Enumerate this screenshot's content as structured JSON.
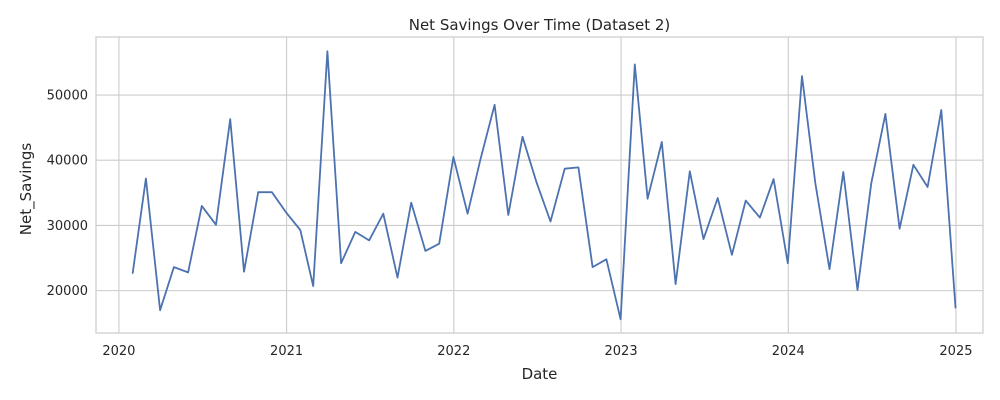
{
  "chart_data": {
    "type": "line",
    "title": "Net Savings Over Time (Dataset 2)",
    "xlabel": "Date",
    "ylabel": "Net_Savings",
    "x_ticks": [
      "2020",
      "2021",
      "2022",
      "2023",
      "2024",
      "2025"
    ],
    "y_ticks": [
      20000,
      30000,
      40000,
      50000
    ],
    "x_range": [
      "2019-11-12",
      "2025-03-01"
    ],
    "y_range": [
      13500,
      58900
    ],
    "grid": true,
    "line_color": "#4c72b0",
    "series": [
      {
        "x": [
          "2020-01-31",
          "2020-02-29",
          "2020-03-31",
          "2020-04-30",
          "2020-05-31",
          "2020-06-30",
          "2020-07-31",
          "2020-08-31",
          "2020-09-30",
          "2020-10-31",
          "2020-11-30",
          "2020-12-31",
          "2021-01-31",
          "2021-02-28",
          "2021-03-31",
          "2021-04-30",
          "2021-05-31",
          "2021-06-30",
          "2021-07-31",
          "2021-08-31",
          "2021-09-30",
          "2021-10-31",
          "2021-11-30",
          "2021-12-31",
          "2022-01-31",
          "2022-02-28",
          "2022-03-31",
          "2022-04-30",
          "2022-05-31",
          "2022-06-30",
          "2022-07-31",
          "2022-08-31",
          "2022-09-30",
          "2022-10-31",
          "2022-11-30",
          "2022-12-31",
          "2023-01-31",
          "2023-02-28",
          "2023-03-31",
          "2023-04-30",
          "2023-05-31",
          "2023-06-30",
          "2023-07-31",
          "2023-08-31",
          "2023-09-30",
          "2023-10-31",
          "2023-11-30",
          "2023-12-31",
          "2024-01-31",
          "2024-02-29",
          "2024-03-31",
          "2024-04-30",
          "2024-05-31",
          "2024-06-30",
          "2024-07-31",
          "2024-08-31",
          "2024-09-30",
          "2024-10-31",
          "2024-11-30",
          "2024-12-31"
        ],
        "y": [
          22700,
          37200,
          17000,
          23600,
          22800,
          33000,
          30100,
          46300,
          22900,
          35100,
          35100,
          32000,
          29300,
          20700,
          56700,
          24200,
          29000,
          27700,
          31800,
          22000,
          33500,
          26100,
          27200,
          40500,
          31800,
          40100,
          48500,
          31600,
          43600,
          36700,
          30600,
          38700,
          38900,
          23600,
          24800,
          15600,
          54700,
          34100,
          42800,
          21000,
          38300,
          27900,
          34200,
          25500,
          33800,
          31200,
          37100,
          24200,
          52900,
          36500,
          23300,
          38200,
          20100,
          36400,
          47100,
          29500,
          39300,
          35900,
          47700,
          17400
        ]
      }
    ]
  }
}
